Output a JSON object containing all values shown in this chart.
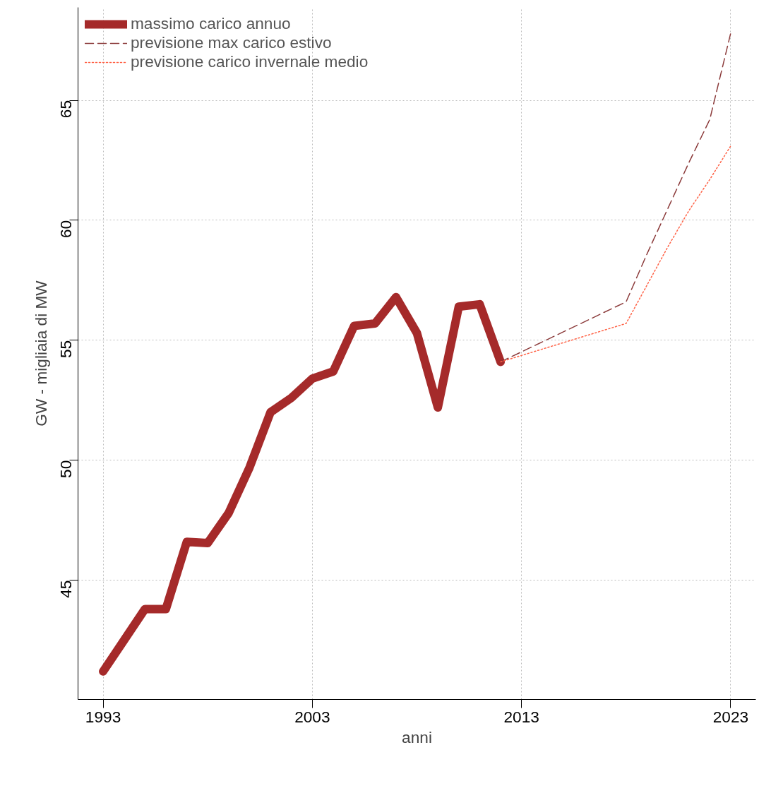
{
  "chart_data": {
    "type": "line",
    "xlabel": "anni",
    "ylabel": "GW - migliaia di MW",
    "xlim": [
      1991.8,
      2024.2
    ],
    "ylim": [
      40.03,
      68.87
    ],
    "xticks": [
      1993,
      2003,
      2013,
      2023
    ],
    "yticks": [
      45,
      50,
      55,
      60,
      65
    ],
    "grid": true,
    "legend": "top left",
    "marker": "none",
    "series": [
      {
        "name": "massimo carico annuo",
        "color": "#a52a2a",
        "line_style": "solid",
        "x": [
          1993,
          1994,
          1995,
          1996,
          1997,
          1998,
          1999,
          2000,
          2001,
          2002,
          2003,
          2004,
          2005,
          2006,
          2007,
          2008,
          2009,
          2010,
          2011,
          2012
        ],
        "values": [
          41.2,
          42.5,
          43.8,
          43.8,
          46.6,
          46.55,
          47.8,
          49.7,
          52.0,
          52.6,
          53.4,
          53.7,
          55.6,
          55.7,
          56.8,
          55.3,
          52.2,
          56.4,
          56.5,
          54.1
        ]
      },
      {
        "name": "previsione max carico estivo",
        "color": "#8b3a3a",
        "line_style": "dashed",
        "x": [
          2012,
          2018,
          2019,
          2020,
          2021,
          2022,
          2023
        ],
        "values": [
          54.1,
          56.6,
          58.6,
          60.5,
          62.4,
          64.2,
          67.8
        ]
      },
      {
        "name": "previsione carico invernale medio",
        "color": "#ff6347",
        "line_style": "dotted",
        "x": [
          2012,
          2018,
          2019,
          2020,
          2021,
          2022,
          2023
        ],
        "values": [
          54.1,
          55.7,
          57.3,
          58.9,
          60.4,
          61.7,
          63.1
        ]
      }
    ]
  }
}
